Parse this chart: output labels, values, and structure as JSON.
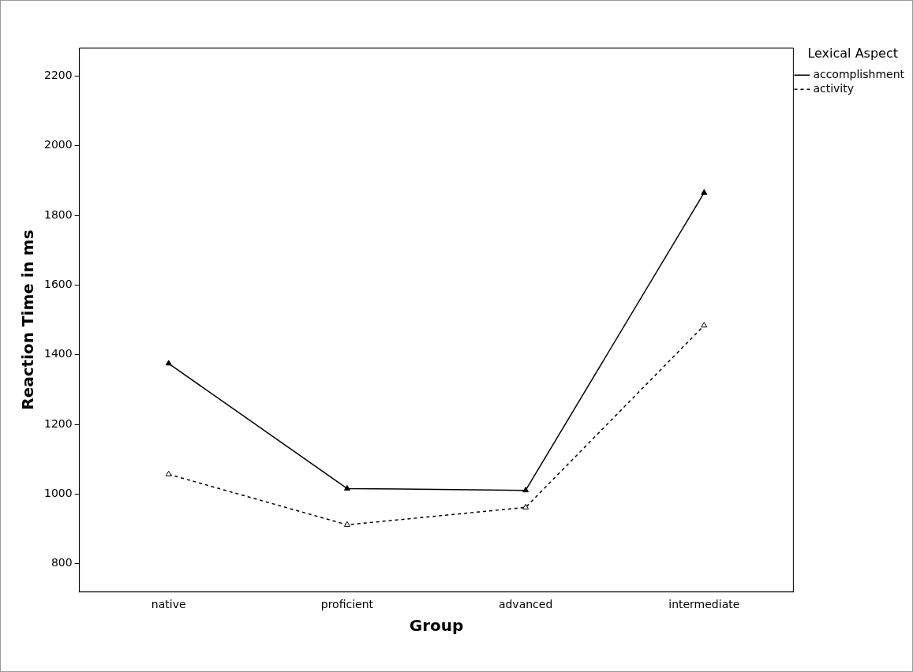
{
  "chart_data": {
    "type": "line",
    "xlabel": "Group",
    "ylabel": "Reaction Time in ms",
    "legend_title": "Lexical Aspect",
    "categories": [
      "native",
      "proficient",
      "advanced",
      "intermediate"
    ],
    "series": [
      {
        "name": "accomplishment",
        "color": "#000000",
        "line_style": "solid",
        "values": [
          1375,
          1016,
          1011,
          1865
        ]
      },
      {
        "name": "activity",
        "color": "#000000",
        "line_style": "dashed",
        "values": [
          1057,
          912,
          962,
          1484
        ]
      }
    ],
    "ylim": [
      720,
      2280
    ],
    "yticks": [
      800,
      1000,
      1200,
      1400,
      1600,
      1800,
      2000,
      2200
    ],
    "marker": "triangle",
    "legend": "top right",
    "grid": false
  }
}
